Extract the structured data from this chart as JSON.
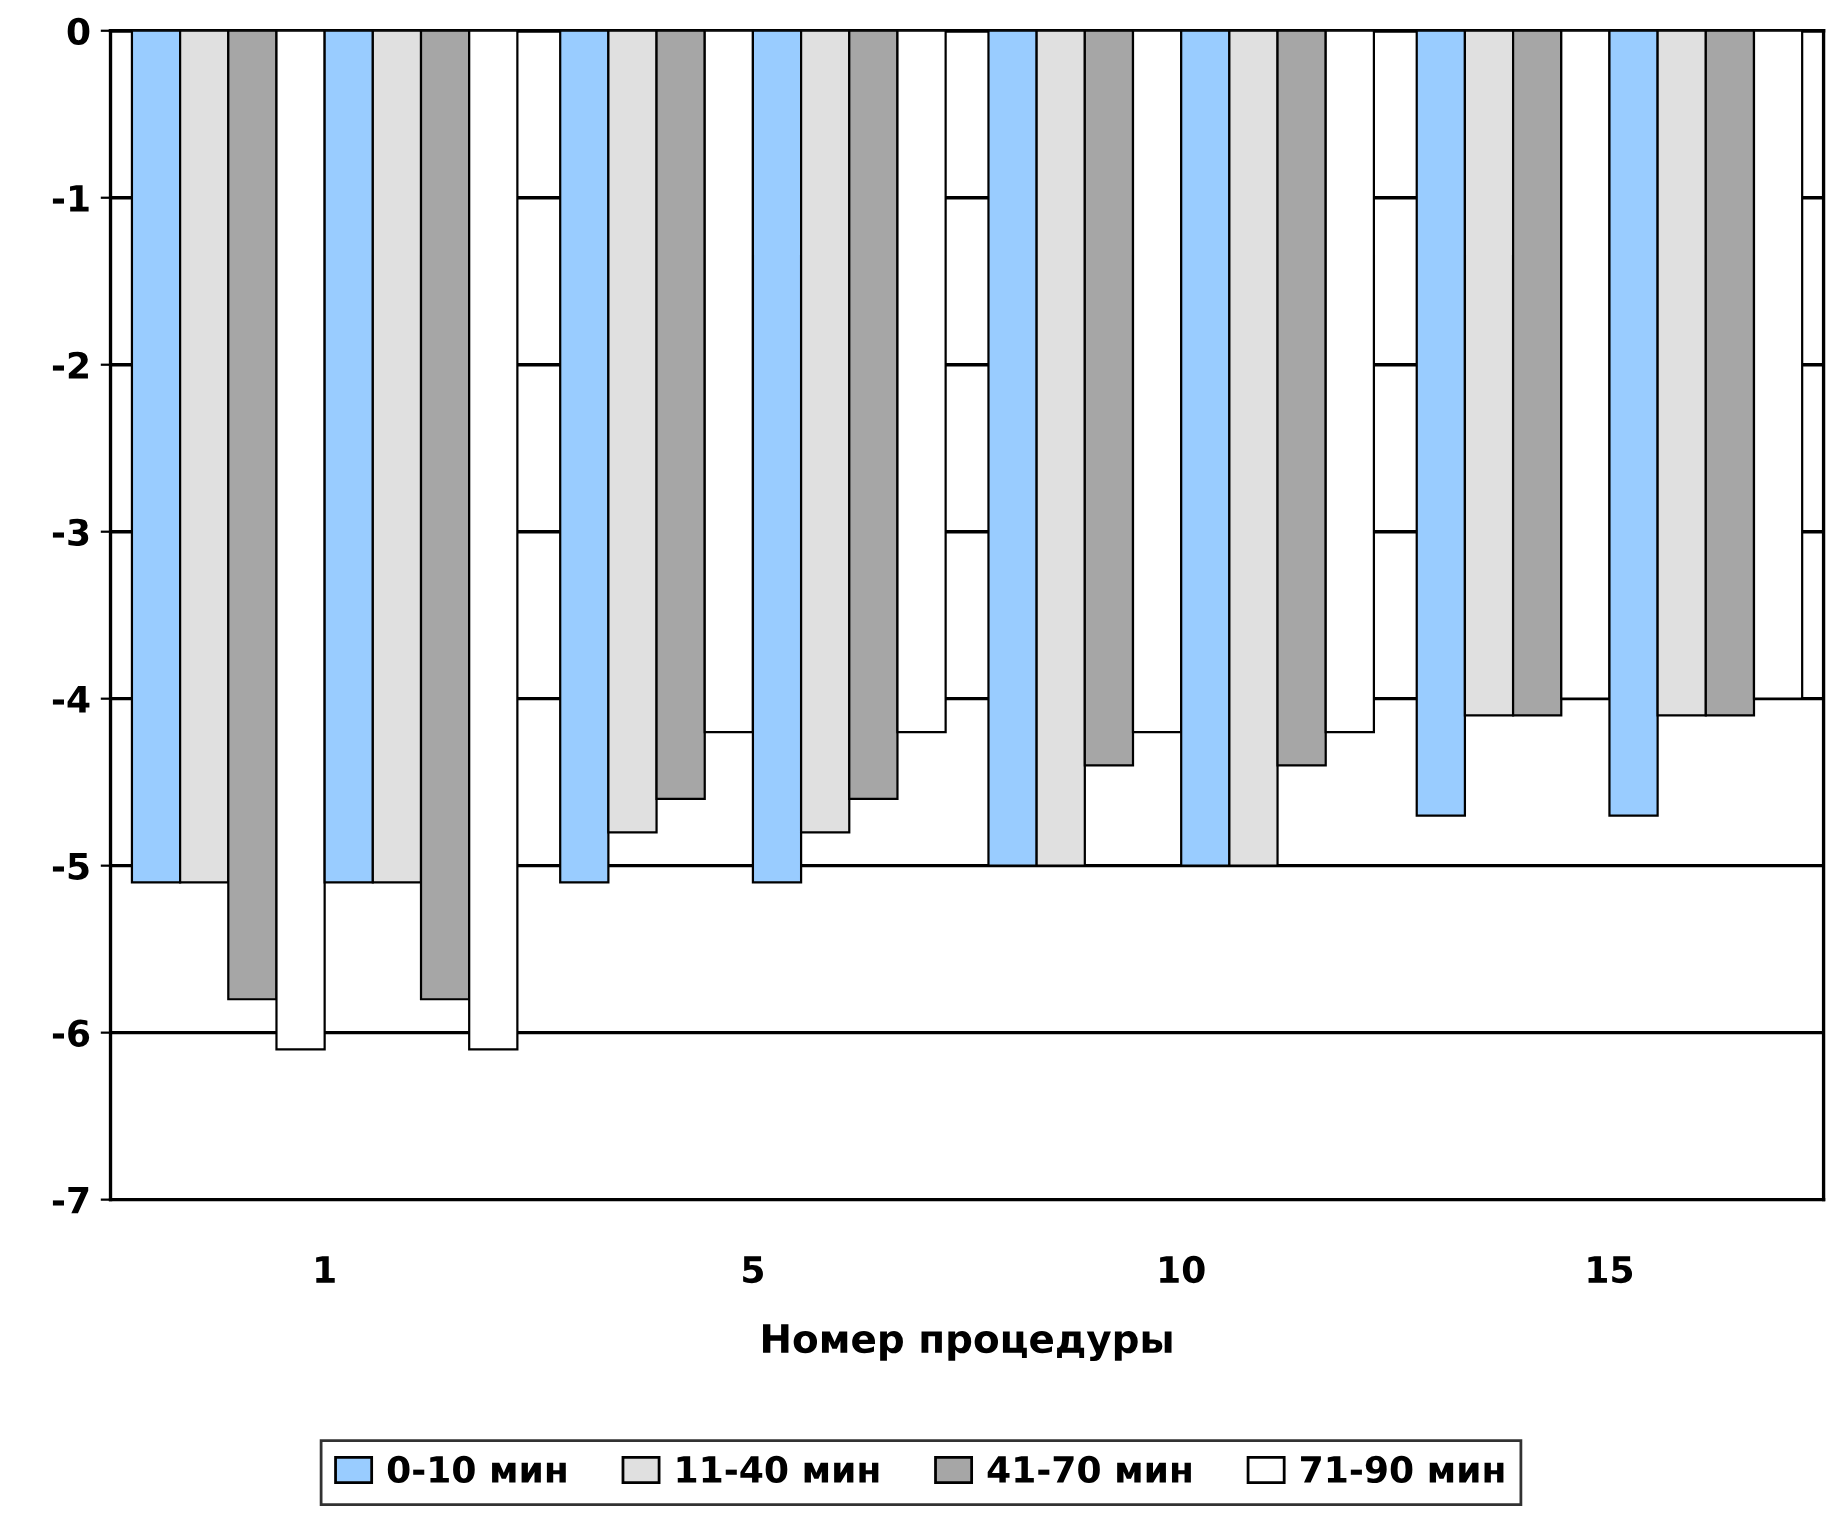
{
  "chart_data": {
    "type": "bar",
    "xlabel": "Номер процедуры",
    "categories": [
      "1",
      "5",
      "10",
      "15"
    ],
    "series": [
      {
        "name": "0-10 мин",
        "color": "#99ccff",
        "values": [
          -5.1,
          -5.1,
          -5.0,
          -4.7
        ]
      },
      {
        "name": "11-40 мин",
        "color": "#e0e0e0",
        "values": [
          -5.1,
          -4.8,
          -5.0,
          -4.1
        ]
      },
      {
        "name": "41-70 мин",
        "color": "#a6a6a6",
        "values": [
          -5.8,
          -4.6,
          -4.4,
          -4.1
        ]
      },
      {
        "name": "71-90 мин",
        "color": "#ffffff",
        "values": [
          -6.1,
          -4.2,
          -4.2,
          -4.0
        ]
      },
      {
        "color": "#99ccff",
        "values": [
          -5.1,
          -5.1,
          -5.0,
          -4.7
        ]
      },
      {
        "color": "#e0e0e0",
        "values": [
          -5.1,
          -4.8,
          -5.0,
          -4.1
        ]
      },
      {
        "color": "#a6a6a6",
        "values": [
          -5.8,
          -4.6,
          -4.4,
          -4.1
        ]
      },
      {
        "color": "#ffffff",
        "values": [
          -6.1,
          -4.2,
          -4.2,
          -4.0
        ]
      }
    ],
    "ylim": [
      -7,
      0
    ],
    "yticks": [
      0,
      -1,
      -2,
      -3,
      -4,
      -5,
      -6,
      -7
    ],
    "grid": "y",
    "legend": "bottom"
  }
}
